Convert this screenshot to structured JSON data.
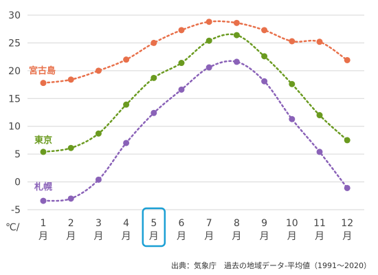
{
  "chart_data": {
    "type": "line",
    "categories": [
      "1",
      "2",
      "3",
      "4",
      "5",
      "6",
      "7",
      "8",
      "9",
      "10",
      "11",
      "12"
    ],
    "month_suffix": "月",
    "unit_label": "℃/",
    "highlight_index": 4,
    "ylim": [
      -5,
      30
    ],
    "yticks": [
      -5,
      0,
      5,
      10,
      15,
      20,
      25,
      30
    ],
    "grid": true,
    "series": [
      {
        "name": "宮古島",
        "color": "#e8704a",
        "values": [
          17.8,
          18.4,
          20.0,
          22.0,
          25.0,
          27.3,
          28.8,
          28.6,
          27.3,
          25.3,
          25.2,
          21.9
        ]
      },
      {
        "name": "東京",
        "color": "#6a9a1f",
        "values": [
          5.4,
          6.1,
          8.7,
          13.9,
          18.7,
          21.4,
          25.4,
          26.4,
          22.6,
          17.6,
          12.0,
          7.5
        ]
      },
      {
        "name": "札幌",
        "color": "#8a62b8",
        "values": [
          -3.4,
          -3.0,
          0.4,
          7.0,
          12.4,
          16.6,
          20.6,
          21.6,
          18.1,
          11.3,
          5.4,
          -1.1
        ]
      }
    ],
    "source": "出典：気象庁　過去の地域データ-平均値（1991～2020）"
  }
}
